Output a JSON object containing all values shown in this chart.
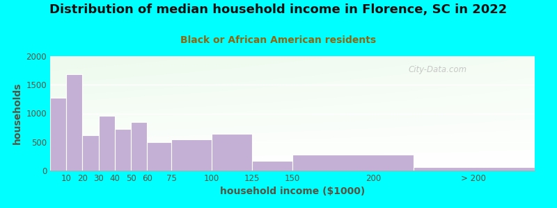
{
  "title": "Distribution of median household income in Florence, SC in 2022",
  "subtitle": "Black or African American residents",
  "xlabel": "household income ($1000)",
  "ylabel": "households",
  "background_outer": "#00FFFF",
  "bar_color": "#C4B0D5",
  "bar_edge_color": "#FFFFFF",
  "bar_lefts": [
    0,
    10,
    20,
    30,
    40,
    50,
    60,
    75,
    100,
    125,
    150,
    225
  ],
  "bar_widths": [
    10,
    10,
    10,
    10,
    10,
    10,
    15,
    25,
    25,
    25,
    75,
    75
  ],
  "values": [
    1270,
    1690,
    620,
    960,
    730,
    850,
    500,
    540,
    640,
    175,
    275,
    65
  ],
  "xlim": [
    0,
    300
  ],
  "ylim": [
    0,
    2000
  ],
  "yticks": [
    0,
    500,
    1000,
    1500,
    2000
  ],
  "xtick_positions": [
    10,
    20,
    30,
    40,
    50,
    60,
    75,
    100,
    125,
    150,
    200,
    262
  ],
  "xtick_labels": [
    "10",
    "20",
    "30",
    "40",
    "50",
    "60",
    "75",
    "100",
    "125",
    "150",
    "200",
    "> 200"
  ],
  "watermark": "City-Data.com",
  "title_fontsize": 13,
  "subtitle_fontsize": 10,
  "axis_label_fontsize": 10,
  "tick_fontsize": 8.5,
  "subtitle_color": "#8B6914",
  "title_color": "#111111",
  "ylabel_color": "#555544",
  "xlabel_color": "#555544",
  "tick_color": "#555544"
}
